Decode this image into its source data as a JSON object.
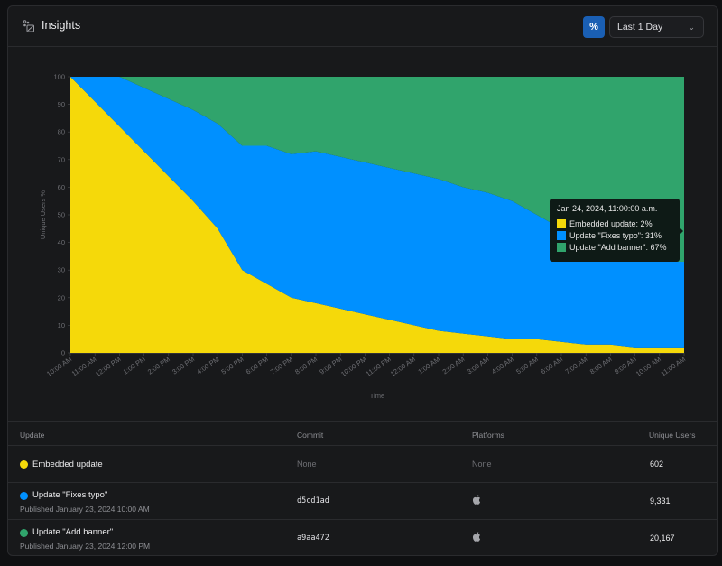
{
  "header": {
    "title": "Insights",
    "title_icon": "insights-icon",
    "percent_toggle_label": "%",
    "percent_toggle_icon": "percent-icon",
    "range_select": {
      "selected": "Last 1 Day",
      "icon": "chevron-down-icon"
    }
  },
  "colors": {
    "embedded": "#f5d90a",
    "fixes_typo": "#0090ff",
    "add_banner": "#30a46c",
    "percent_button": "#1a5fb4"
  },
  "chart_data": {
    "type": "area",
    "stacked": true,
    "normalized_percent": true,
    "title": "",
    "xlabel": "Time",
    "ylabel": "Unique Users %",
    "ylim": [
      0,
      100
    ],
    "yticks": [
      0,
      10,
      20,
      30,
      40,
      50,
      60,
      70,
      80,
      90,
      100
    ],
    "grid": false,
    "legend_position": "none (tooltip shown)",
    "categories": [
      "10:00 AM",
      "11:00 AM",
      "12:00 PM",
      "1:00 PM",
      "2:00 PM",
      "3:00 PM",
      "4:00 PM",
      "5:00 PM",
      "6:00 PM",
      "7:00 PM",
      "8:00 PM",
      "9:00 PM",
      "10:00 PM",
      "11:00 PM",
      "12:00 AM",
      "1:00 AM",
      "2:00 AM",
      "3:00 AM",
      "4:00 AM",
      "5:00 AM",
      "6:00 AM",
      "7:00 AM",
      "8:00 AM",
      "9:00 AM",
      "10:00 AM",
      "11:00 AM"
    ],
    "series": [
      {
        "name": "Embedded update",
        "color": "#f5d90a",
        "values": [
          100,
          91,
          82,
          73,
          64,
          55,
          45,
          30,
          25,
          20,
          18,
          16,
          14,
          12,
          10,
          8,
          7,
          6,
          5,
          5,
          4,
          3,
          3,
          2,
          2,
          2
        ]
      },
      {
        "name": "Update \"Fixes typo\"",
        "color": "#0090ff",
        "values": [
          0,
          9,
          18,
          23,
          28,
          33,
          38,
          45,
          50,
          52,
          55,
          55,
          55,
          55,
          55,
          55,
          53,
          52,
          50,
          45,
          41,
          36,
          32,
          31,
          31,
          31
        ]
      },
      {
        "name": "Update \"Add banner\"",
        "color": "#30a46c",
        "values": [
          0,
          0,
          0,
          4,
          8,
          12,
          17,
          25,
          25,
          28,
          27,
          29,
          31,
          33,
          35,
          37,
          40,
          42,
          45,
          50,
          55,
          61,
          65,
          67,
          67,
          67
        ]
      }
    ],
    "tooltip": {
      "title": "Jan 24, 2024, 11:00:00 a.m.",
      "items": [
        {
          "label": "Embedded update: 2%",
          "color": "#f5d90a"
        },
        {
          "label": "Update \"Fixes typo\": 31%",
          "color": "#0090ff"
        },
        {
          "label": "Update \"Add banner\": 67%",
          "color": "#30a46c"
        }
      ]
    }
  },
  "table": {
    "headers": {
      "update": "Update",
      "commit": "Commit",
      "platforms": "Platforms",
      "unique_users": "Unique Users"
    },
    "rows": [
      {
        "name": "Embedded update",
        "published": "",
        "commit": "None",
        "platforms": "None",
        "platform_icon": "",
        "unique_users": "602",
        "color": "#f5d90a"
      },
      {
        "name": "Update \"Fixes typo\"",
        "published": "Published January 23, 2024 10:00 AM",
        "commit": "d5cd1ad",
        "platforms": "iOS",
        "platform_icon": "apple-icon",
        "unique_users": "9,331",
        "color": "#0090ff"
      },
      {
        "name": "Update \"Add banner\"",
        "published": "Published January 23, 2024 12:00 PM",
        "commit": "a9aa472",
        "platforms": "iOS",
        "platform_icon": "apple-icon",
        "unique_users": "20,167",
        "color": "#30a46c"
      }
    ]
  }
}
